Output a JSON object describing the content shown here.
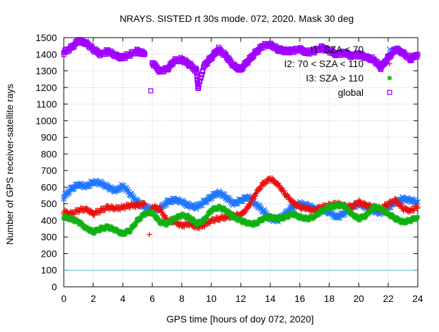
{
  "chart_data": {
    "type": "scatter",
    "title": "NRAYS. SISTED rt 30s mode. 072, 2020. Mask 30 deg",
    "xlabel": "GPS time [hours of doy 072, 2020]",
    "ylabel": "Number of GPS receiver-satellite rays",
    "xlim": [
      0,
      24
    ],
    "ylim": [
      0,
      1500
    ],
    "xticks": [
      0,
      2,
      4,
      6,
      8,
      10,
      12,
      14,
      16,
      18,
      20,
      22,
      24
    ],
    "yticks": [
      0,
      100,
      200,
      300,
      400,
      500,
      600,
      700,
      800,
      900,
      1000,
      1100,
      1200,
      1300,
      1400,
      1500
    ],
    "grid": true,
    "legend_position": "top-right",
    "reference_line": {
      "y": 100,
      "color": "#40c8d8"
    },
    "series": [
      {
        "name": "I1: SZA < 70",
        "color": "#1f77ff",
        "marker": "x",
        "points": [
          [
            0,
            540
          ],
          [
            0.5,
            590
          ],
          [
            1,
            615
          ],
          [
            1.5,
            605
          ],
          [
            2,
            630
          ],
          [
            2.5,
            625
          ],
          [
            3,
            600
          ],
          [
            3.5,
            575
          ],
          [
            4,
            610
          ],
          [
            4.5,
            560
          ],
          [
            5,
            510
          ],
          [
            5.5,
            480
          ],
          [
            6,
            470
          ],
          [
            6.5,
            465
          ],
          [
            7,
            510
          ],
          [
            7.5,
            525
          ],
          [
            8,
            510
          ],
          [
            8.5,
            490
          ],
          [
            9,
            480
          ],
          [
            9.5,
            510
          ],
          [
            10,
            540
          ],
          [
            10.5,
            570
          ],
          [
            11,
            540
          ],
          [
            11.5,
            500
          ],
          [
            12,
            520
          ],
          [
            12.5,
            540
          ],
          [
            13,
            500
          ],
          [
            13.5,
            460
          ],
          [
            14,
            410
          ],
          [
            14.5,
            400
          ],
          [
            15,
            440
          ],
          [
            15.5,
            480
          ],
          [
            16,
            500
          ],
          [
            16.5,
            490
          ],
          [
            17,
            470
          ],
          [
            17.5,
            460
          ],
          [
            18,
            450
          ],
          [
            18.5,
            420
          ],
          [
            19,
            440
          ],
          [
            19.5,
            480
          ],
          [
            20,
            500
          ],
          [
            20.5,
            480
          ],
          [
            21,
            460
          ],
          [
            21.5,
            440
          ],
          [
            22,
            480
          ],
          [
            22.5,
            510
          ],
          [
            23,
            530
          ],
          [
            23.5,
            520
          ],
          [
            24,
            510
          ]
        ]
      },
      {
        "name": "I2: 70 < SZA < 110",
        "color": "#e81010",
        "marker": "+",
        "points": [
          [
            0,
            450
          ],
          [
            0.5,
            440
          ],
          [
            1,
            460
          ],
          [
            1.5,
            470
          ],
          [
            2,
            440
          ],
          [
            2.5,
            460
          ],
          [
            3,
            480
          ],
          [
            3.5,
            470
          ],
          [
            4,
            480
          ],
          [
            4.5,
            490
          ],
          [
            5,
            490
          ],
          [
            5.5,
            500
          ],
          [
            5.8,
            315
          ],
          [
            6,
            480
          ],
          [
            6.5,
            470
          ],
          [
            7,
            400
          ],
          [
            7.5,
            390
          ],
          [
            8,
            370
          ],
          [
            8.5,
            380
          ],
          [
            9,
            360
          ],
          [
            9.5,
            370
          ],
          [
            10,
            400
          ],
          [
            10.5,
            410
          ],
          [
            11,
            420
          ],
          [
            11.5,
            430
          ],
          [
            12,
            430
          ],
          [
            12.5,
            480
          ],
          [
            13,
            560
          ],
          [
            13.5,
            620
          ],
          [
            14,
            650
          ],
          [
            14.5,
            620
          ],
          [
            15,
            560
          ],
          [
            15.5,
            510
          ],
          [
            16,
            480
          ],
          [
            16.5,
            470
          ],
          [
            17,
            460
          ],
          [
            17.5,
            480
          ],
          [
            18,
            490
          ],
          [
            18.5,
            500
          ],
          [
            19,
            490
          ],
          [
            19.5,
            480
          ],
          [
            20,
            510
          ],
          [
            20.5,
            490
          ],
          [
            21,
            480
          ],
          [
            21.5,
            470
          ],
          [
            22,
            500
          ],
          [
            22.5,
            520
          ],
          [
            23,
            470
          ],
          [
            23.5,
            460
          ],
          [
            24,
            480
          ]
        ]
      },
      {
        "name": "I3: SZA > 110",
        "color": "#10b010",
        "marker": "*",
        "points": [
          [
            0,
            420
          ],
          [
            0.5,
            410
          ],
          [
            1,
            390
          ],
          [
            1.5,
            355
          ],
          [
            2,
            330
          ],
          [
            2.5,
            350
          ],
          [
            3,
            360
          ],
          [
            3.5,
            340
          ],
          [
            4,
            320
          ],
          [
            4.5,
            340
          ],
          [
            5,
            400
          ],
          [
            5.5,
            440
          ],
          [
            6,
            450
          ],
          [
            6.5,
            390
          ],
          [
            7,
            380
          ],
          [
            7.5,
            410
          ],
          [
            8,
            430
          ],
          [
            8.5,
            420
          ],
          [
            9,
            380
          ],
          [
            9.5,
            400
          ],
          [
            10,
            460
          ],
          [
            10.5,
            480
          ],
          [
            11,
            460
          ],
          [
            11.5,
            420
          ],
          [
            12,
            400
          ],
          [
            12.5,
            380
          ],
          [
            13,
            380
          ],
          [
            13.5,
            410
          ],
          [
            14,
            420
          ],
          [
            14.5,
            410
          ],
          [
            15,
            420
          ],
          [
            15.5,
            440
          ],
          [
            16,
            420
          ],
          [
            16.5,
            410
          ],
          [
            17,
            420
          ],
          [
            17.5,
            460
          ],
          [
            18,
            480
          ],
          [
            18.5,
            490
          ],
          [
            19,
            490
          ],
          [
            19.5,
            440
          ],
          [
            20,
            410
          ],
          [
            20.5,
            430
          ],
          [
            21,
            480
          ],
          [
            21.5,
            470
          ],
          [
            22,
            440
          ],
          [
            22.5,
            410
          ],
          [
            23,
            390
          ],
          [
            23.5,
            400
          ],
          [
            24,
            420
          ]
        ]
      },
      {
        "name": "global",
        "color": "#a000ff",
        "marker": "square",
        "points": [
          [
            0,
            1410
          ],
          [
            0.5,
            1440
          ],
          [
            1,
            1480
          ],
          [
            1.5,
            1470
          ],
          [
            2,
            1430
          ],
          [
            2.5,
            1400
          ],
          [
            3,
            1420
          ],
          [
            3.5,
            1390
          ],
          [
            4,
            1380
          ],
          [
            4.5,
            1400
          ],
          [
            5,
            1420
          ],
          [
            5.5,
            1400
          ],
          [
            5.9,
            1180
          ],
          [
            6,
            1350
          ],
          [
            6.5,
            1300
          ],
          [
            7,
            1310
          ],
          [
            7.5,
            1360
          ],
          [
            8,
            1370
          ],
          [
            8.5,
            1340
          ],
          [
            9,
            1300
          ],
          [
            9.1,
            1195
          ],
          [
            9.5,
            1330
          ],
          [
            10,
            1380
          ],
          [
            10.5,
            1430
          ],
          [
            11,
            1390
          ],
          [
            11.5,
            1330
          ],
          [
            12,
            1310
          ],
          [
            12.5,
            1360
          ],
          [
            13,
            1410
          ],
          [
            13.5,
            1450
          ],
          [
            14,
            1460
          ],
          [
            14.5,
            1430
          ],
          [
            15,
            1420
          ],
          [
            15.5,
            1420
          ],
          [
            16,
            1430
          ],
          [
            16.5,
            1410
          ],
          [
            17,
            1420
          ],
          [
            17.5,
            1440
          ],
          [
            18,
            1420
          ],
          [
            18.5,
            1400
          ],
          [
            19,
            1410
          ],
          [
            19.5,
            1390
          ],
          [
            20,
            1400
          ],
          [
            20.5,
            1380
          ],
          [
            21,
            1370
          ],
          [
            21.5,
            1320
          ],
          [
            22,
            1380
          ],
          [
            22.5,
            1430
          ],
          [
            23,
            1410
          ],
          [
            23.5,
            1370
          ],
          [
            24,
            1400
          ]
        ]
      }
    ]
  }
}
